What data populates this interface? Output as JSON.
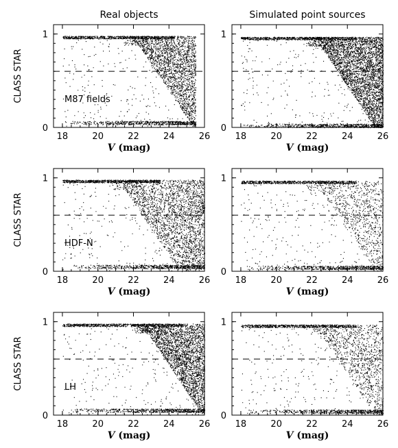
{
  "figure": {
    "column_titles": [
      "Real objects",
      "Simulated point sources"
    ]
  },
  "chart_data": [
    {
      "type": "scatter",
      "panel": "real-m87",
      "field_label": "M87 fields",
      "xlabel_italic": "V",
      "xlabel_rest": " (mag)",
      "ylabel": "CLASS STAR",
      "xlim": [
        17.5,
        26
      ],
      "ylim": [
        0,
        1.1
      ],
      "xticks": [
        18,
        20,
        22,
        24,
        26
      ],
      "xticklabels": [
        "18",
        "20",
        "22",
        "24",
        "26"
      ],
      "yticks": [
        0,
        1
      ],
      "yticklabels": [
        "0",
        "1"
      ],
      "threshold_line": {
        "y": 0.6,
        "style": "dashed"
      },
      "distribution": {
        "star_seq_y": 0.98,
        "star_seq_end": 24.3,
        "gal_seq_y": 0.03,
        "faint_limit": 25.5,
        "mid_density": 0.5
      }
    },
    {
      "type": "scatter",
      "panel": "sim-m87",
      "field_label": "",
      "xlabel_italic": "V",
      "xlabel_rest": " (mag)",
      "ylabel": "",
      "xlim": [
        17.5,
        26
      ],
      "ylim": [
        0,
        1.1
      ],
      "xticks": [
        18,
        20,
        22,
        24,
        26
      ],
      "xticklabels": [
        "18",
        "20",
        "22",
        "24",
        "26"
      ],
      "yticks": [
        0,
        1
      ],
      "yticklabels": [
        "0",
        "1"
      ],
      "threshold_line": {
        "y": 0.6,
        "style": "dashed"
      },
      "distribution": {
        "star_seq_y": 0.97,
        "star_seq_end": 24.5,
        "gal_seq_y": 0.0,
        "faint_limit": 26,
        "mid_density": 0.9
      }
    },
    {
      "type": "scatter",
      "panel": "real-hdfn",
      "field_label": "HDF-N",
      "xlabel_italic": "V",
      "xlabel_rest": " (mag)",
      "ylabel": "CLASS STAR",
      "xlim": [
        17.5,
        26
      ],
      "ylim": [
        0,
        1.1
      ],
      "xticks": [
        18,
        20,
        22,
        24,
        26
      ],
      "xticklabels": [
        "18",
        "20",
        "22",
        "24",
        "26"
      ],
      "yticks": [
        0,
        1
      ],
      "yticklabels": [
        "0",
        "1"
      ],
      "threshold_line": {
        "y": 0.6,
        "style": "dashed"
      },
      "distribution": {
        "star_seq_y": 0.98,
        "star_seq_end": 23.5,
        "gal_seq_y": 0.03,
        "faint_limit": 26,
        "mid_density": 0.6
      }
    },
    {
      "type": "scatter",
      "panel": "sim-hdfn",
      "field_label": "",
      "xlabel_italic": "V",
      "xlabel_rest": " (mag)",
      "ylabel": "",
      "xlim": [
        17.5,
        26
      ],
      "ylim": [
        0,
        1.1
      ],
      "xticks": [
        18,
        20,
        22,
        24,
        26
      ],
      "xticklabels": [
        "18",
        "20",
        "22",
        "24",
        "26"
      ],
      "yticks": [
        0,
        1
      ],
      "yticklabels": [
        "0",
        "1"
      ],
      "threshold_line": {
        "y": 0.6,
        "style": "dashed"
      },
      "distribution": {
        "star_seq_y": 0.97,
        "star_seq_end": 24.5,
        "gal_seq_y": 0.02,
        "faint_limit": 26,
        "mid_density": 0.15
      }
    },
    {
      "type": "scatter",
      "panel": "real-lh",
      "field_label": "LH",
      "xlabel_italic": "V",
      "xlabel_rest": " (mag)",
      "ylabel": "CLASS STAR",
      "xlim": [
        17.5,
        26
      ],
      "ylim": [
        0,
        1.1
      ],
      "xticks": [
        18,
        20,
        22,
        24,
        26
      ],
      "xticklabels": [
        "18",
        "20",
        "22",
        "24",
        "26"
      ],
      "yticks": [
        0,
        1
      ],
      "yticklabels": [
        "0",
        "1"
      ],
      "threshold_line": {
        "y": 0.6,
        "style": "dashed"
      },
      "distribution": {
        "star_seq_y": 0.98,
        "star_seq_end": 24.8,
        "gal_seq_y": 0.03,
        "faint_limit": 26,
        "mid_density": 0.65
      }
    },
    {
      "type": "scatter",
      "panel": "sim-lh",
      "field_label": "",
      "xlabel_italic": "V",
      "xlabel_rest": " (mag)",
      "ylabel": "",
      "xlim": [
        17.5,
        26
      ],
      "ylim": [
        0,
        1.1
      ],
      "xticks": [
        18,
        20,
        22,
        24,
        26
      ],
      "xticklabels": [
        "18",
        "20",
        "22",
        "24",
        "26"
      ],
      "yticks": [
        0,
        1
      ],
      "yticklabels": [
        "0",
        "1"
      ],
      "threshold_line": {
        "y": 0.6,
        "style": "dashed"
      },
      "distribution": {
        "star_seq_y": 0.97,
        "star_seq_end": 24.5,
        "gal_seq_y": 0.02,
        "faint_limit": 26,
        "mid_density": 0.2
      }
    }
  ]
}
